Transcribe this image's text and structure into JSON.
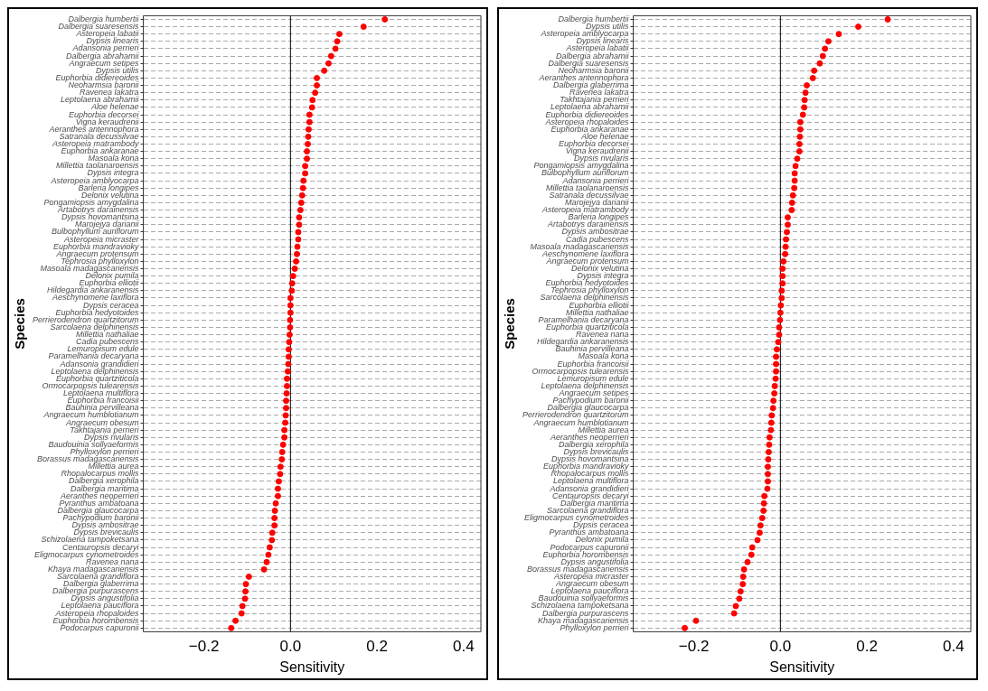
{
  "chart_data": [
    {
      "type": "scatter",
      "orientation": "horizontal",
      "xlabel": "Sensitivity",
      "ylabel": "Species",
      "color": "#ff0000",
      "marker": "circle",
      "grid": "y",
      "xlim": [
        -0.34,
        0.44
      ],
      "xticks": [
        -0.2,
        {
          "value": 0,
          "label": "0.0"
        },
        0.2,
        0.4
      ],
      "ref_lines": [
        {
          "axis": "x",
          "value": 0,
          "color": "#000000"
        }
      ],
      "categories": [
        "Dalbergia humbertii",
        "Dalbergia suaresensis",
        "Asteropeia labatii",
        "Dypsis linearis",
        "Adansonia perrieri",
        "Dalbergia abrahamii",
        "Angraecum setipes",
        "Dypsis utilis",
        "Euphorbia didiereoides",
        "Neoharmsia baronii",
        "Ravenea lakatra",
        "Leptolaena abrahamii",
        "Aloe helenae",
        "Euphorbia decorsei",
        "Vigna keraudrenii",
        "Aeranthes antennophora",
        "Satranala decussilvae",
        "Asteropeia matrambody",
        "Euphorbia ankaranae",
        "Masoala kona",
        "Millettia taolanaroensis",
        "Dypsis integra",
        "Asteropeia amblyocarpa",
        "Barleria longipes",
        "Delonix velutina",
        "Pongamiopsis amygdalina",
        "Artabotrys darainensis",
        "Dypsis hovomantsina",
        "Marojejya darianii",
        "Bulbophyllum auriflorum",
        "Asteropeia micraster",
        "Euphorbia mandravioky",
        "Angraecum protensum",
        "Tephrosia phylloxylon",
        "Masoala madagascariensis",
        "Delonix pumila",
        "Euphorbia elliotii",
        "Hildegardia ankaranensis",
        "Aeschynomene laxiflora",
        "Dypsis ceracea",
        "Euphorbia hedyotoides",
        "Perrierodendron quartzitorum",
        "Sarcolaena delphinensis",
        "Millettia nathaliae",
        "Cadia pubescens",
        "Lemuropisum edule",
        "Paramelhania decaryana",
        "Adansonia grandidieri",
        "Leptolaena delphinensis",
        "Euphorbia quartziticola",
        "Ormocarpopsis tulearensis",
        "Leptolaena multiflora",
        "Euphorbia francoisii",
        "Bauhinia pervilleana",
        "Angraecum humblotianum",
        "Angraecum obesum",
        "Takhtajania perrieri",
        "Dypsis rivularis",
        "Baudouinia sollyaeformis",
        "Phylloxylon perrieri",
        "Borassus madagascariensis",
        "Millettia aurea",
        "Rhopalocarpus mollis",
        "Dalbergia xerophila",
        "Dalbergia maritima",
        "Aeranthes neoperrieri",
        "Pyranthus ambatoana",
        "Dalbergia glaucocarpa",
        "Pachypodium baronii",
        "Dypsis ambositrae",
        "Dypsis brevicaulis",
        "Schizolaena tampoketsana",
        "Centauropsis decaryi",
        "Eligmocarpus cynometroides",
        "Ravenea nana",
        "Khaya madagascariensis",
        "Sarcolaena grandiflora",
        "Dalbergia glaberrima",
        "Dalbergia purpurascens",
        "Dypsis angustifolia",
        "Leptolaena pauciflora",
        "Asteropeia rhopaloides",
        "Euphorbia horombensis",
        "Podocarpus capuronii"
      ],
      "values": [
        0.218,
        0.169,
        0.113,
        0.108,
        0.104,
        0.094,
        0.088,
        0.078,
        0.061,
        0.061,
        0.057,
        0.051,
        0.05,
        0.044,
        0.044,
        0.042,
        0.041,
        0.04,
        0.038,
        0.038,
        0.034,
        0.034,
        0.03,
        0.029,
        0.027,
        0.025,
        0.023,
        0.02,
        0.02,
        0.018,
        0.018,
        0.016,
        0.015,
        0.013,
        0.01,
        0.006,
        0.004,
        0.003,
        0.0,
        0.0,
        0.0,
        -0.001,
        -0.001,
        -0.002,
        -0.003,
        -0.004,
        -0.004,
        -0.005,
        -0.006,
        -0.008,
        -0.008,
        -0.009,
        -0.01,
        -0.01,
        -0.011,
        -0.012,
        -0.014,
        -0.014,
        -0.017,
        -0.019,
        -0.02,
        -0.023,
        -0.024,
        -0.027,
        -0.029,
        -0.029,
        -0.034,
        -0.036,
        -0.037,
        -0.037,
        -0.042,
        -0.043,
        -0.048,
        -0.051,
        -0.055,
        -0.061,
        -0.096,
        -0.103,
        -0.104,
        -0.105,
        -0.111,
        -0.113,
        -0.127,
        -0.137
      ]
    },
    {
      "type": "scatter",
      "orientation": "horizontal",
      "xlabel": "Sensitivity",
      "ylabel": "Species",
      "color": "#ff0000",
      "marker": "circle",
      "grid": "y",
      "xlim": [
        -0.34,
        0.44
      ],
      "xticks": [
        -0.2,
        {
          "value": 0,
          "label": "0.0"
        },
        0.2,
        0.4
      ],
      "ref_lines": [
        {
          "axis": "x",
          "value": 0,
          "color": "#000000"
        }
      ],
      "categories": [
        "Dalbergia humbertii",
        "Dypsis utilis",
        "Asteropeia amblyocarpa",
        "Dypsis linearis",
        "Asteropeia labatii",
        "Dalbergia abrahamii",
        "Dalbergia suaresensis",
        "Neoharmsia baronii",
        "Aeranthes antennophora",
        "Dalbergia glaberrima",
        "Ravenea lakatra",
        "Takhtajania perrieri",
        "Leptolaena abrahamii",
        "Euphorbia didiereoides",
        "Asteropeia rhopaloides",
        "Euphorbia ankaranae",
        "Aloe helenae",
        "Euphorbia decorsei",
        "Vigna keraudrenii",
        "Dypsis rivularis",
        "Pongamiopsis amygdalina",
        "Bulbophyllum auriflorum",
        "Adansonia perrieri",
        "Millettia taolanaroensis",
        "Satranala decussilvae",
        "Marojejya darianii",
        "Asteropeia matrambody",
        "Barleria longipes",
        "Artabotrys darainensis",
        "Dypsis ambositrae",
        "Cadia pubescens",
        "Masoala madagascariensis",
        "Aeschynomene laxiflora",
        "Angraecum protensum",
        "Delonix velutina",
        "Dypsis integra",
        "Euphorbia hedyotoides",
        "Tephrosia phylloxylon",
        "Sarcolaena delphinensis",
        "Euphorbia elliotii",
        "Millettia nathaliae",
        "Paramelhania decaryana",
        "Euphorbia quartziticola",
        "Ravenea nana",
        "Hildegardia ankaranensis",
        "Bauhinia pervilleana",
        "Masoala kona",
        "Euphorbia francoisii",
        "Ormocarpopsis tulearensis",
        "Lemuropisum edule",
        "Leptolaena delphinensis",
        "Angraecum setipes",
        "Pachypodium baronii",
        "Dalbergia glaucocarpa",
        "Perrierodendron quartzitorum",
        "Angraecum humblotianum",
        "Millettia aurea",
        "Aeranthes neoperrieri",
        "Dalbergia xerophila",
        "Dypsis brevicaulis",
        "Dypsis hovomantsina",
        "Euphorbia mandravioky",
        "Rhopalocarpus mollis",
        "Leptolaena multiflora",
        "Adansonia grandidieri",
        "Centauropsis decaryi",
        "Dalbergia maritima",
        "Sarcolaena grandiflora",
        "Eligmocarpus cynometroides",
        "Dypsis ceracea",
        "Pyranthus ambatoana",
        "Delonix pumila",
        "Podocarpus capuronii",
        "Euphorbia horombensis",
        "Dypsis angustifolia",
        "Borassus madagascariensis",
        "Asteropeia micraster",
        "Angraecum obesum",
        "Leptolaena pauciflora",
        "Baudouinia sollyaeformis",
        "Schizolaena tampoketsana",
        "Dalbergia purpurascens",
        "Khaya madagascariensis",
        "Phylloxylon perrieri"
      ],
      "values": [
        0.248,
        0.18,
        0.135,
        0.111,
        0.103,
        0.098,
        0.091,
        0.078,
        0.075,
        0.061,
        0.058,
        0.056,
        0.055,
        0.052,
        0.046,
        0.046,
        0.045,
        0.044,
        0.044,
        0.039,
        0.035,
        0.033,
        0.033,
        0.032,
        0.029,
        0.027,
        0.026,
        0.017,
        0.017,
        0.015,
        0.013,
        0.012,
        0.011,
        0.007,
        0.005,
        0.005,
        0.005,
        0.003,
        0.003,
        0.001,
        0.0,
        -0.001,
        -0.003,
        -0.003,
        -0.005,
        -0.008,
        -0.01,
        -0.01,
        -0.01,
        -0.011,
        -0.013,
        -0.014,
        -0.016,
        -0.017,
        -0.02,
        -0.021,
        -0.022,
        -0.025,
        -0.026,
        -0.027,
        -0.028,
        -0.029,
        -0.029,
        -0.029,
        -0.03,
        -0.037,
        -0.038,
        -0.039,
        -0.042,
        -0.046,
        -0.048,
        -0.053,
        -0.065,
        -0.067,
        -0.076,
        -0.084,
        -0.086,
        -0.087,
        -0.092,
        -0.095,
        -0.103,
        -0.107,
        -0.195,
        -0.221
      ]
    }
  ]
}
